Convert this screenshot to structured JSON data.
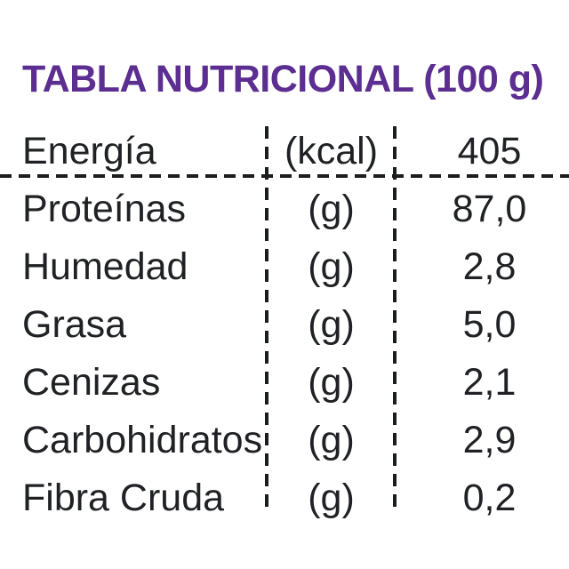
{
  "title": "TABLA NUTRICIONAL (100 g)",
  "colors": {
    "title_purple": "#5c2e91",
    "text": "#1f2124",
    "background": "#ffffff"
  },
  "table": {
    "rows": [
      {
        "label": "Energía",
        "unit": "(kcal)",
        "value": "405"
      },
      {
        "label": "Proteínas",
        "unit": "(g)",
        "value": "87,0"
      },
      {
        "label": "Humedad",
        "unit": "(g)",
        "value": "2,8"
      },
      {
        "label": "Grasa",
        "unit": "(g)",
        "value": "5,0"
      },
      {
        "label": "Cenizas",
        "unit": "(g)",
        "value": "2,1"
      },
      {
        "label": "Carbohidratos",
        "unit": "(g)",
        "value": "2,9"
      },
      {
        "label": "Fibra Cruda",
        "unit": "(g)",
        "value": "0,2"
      }
    ]
  }
}
